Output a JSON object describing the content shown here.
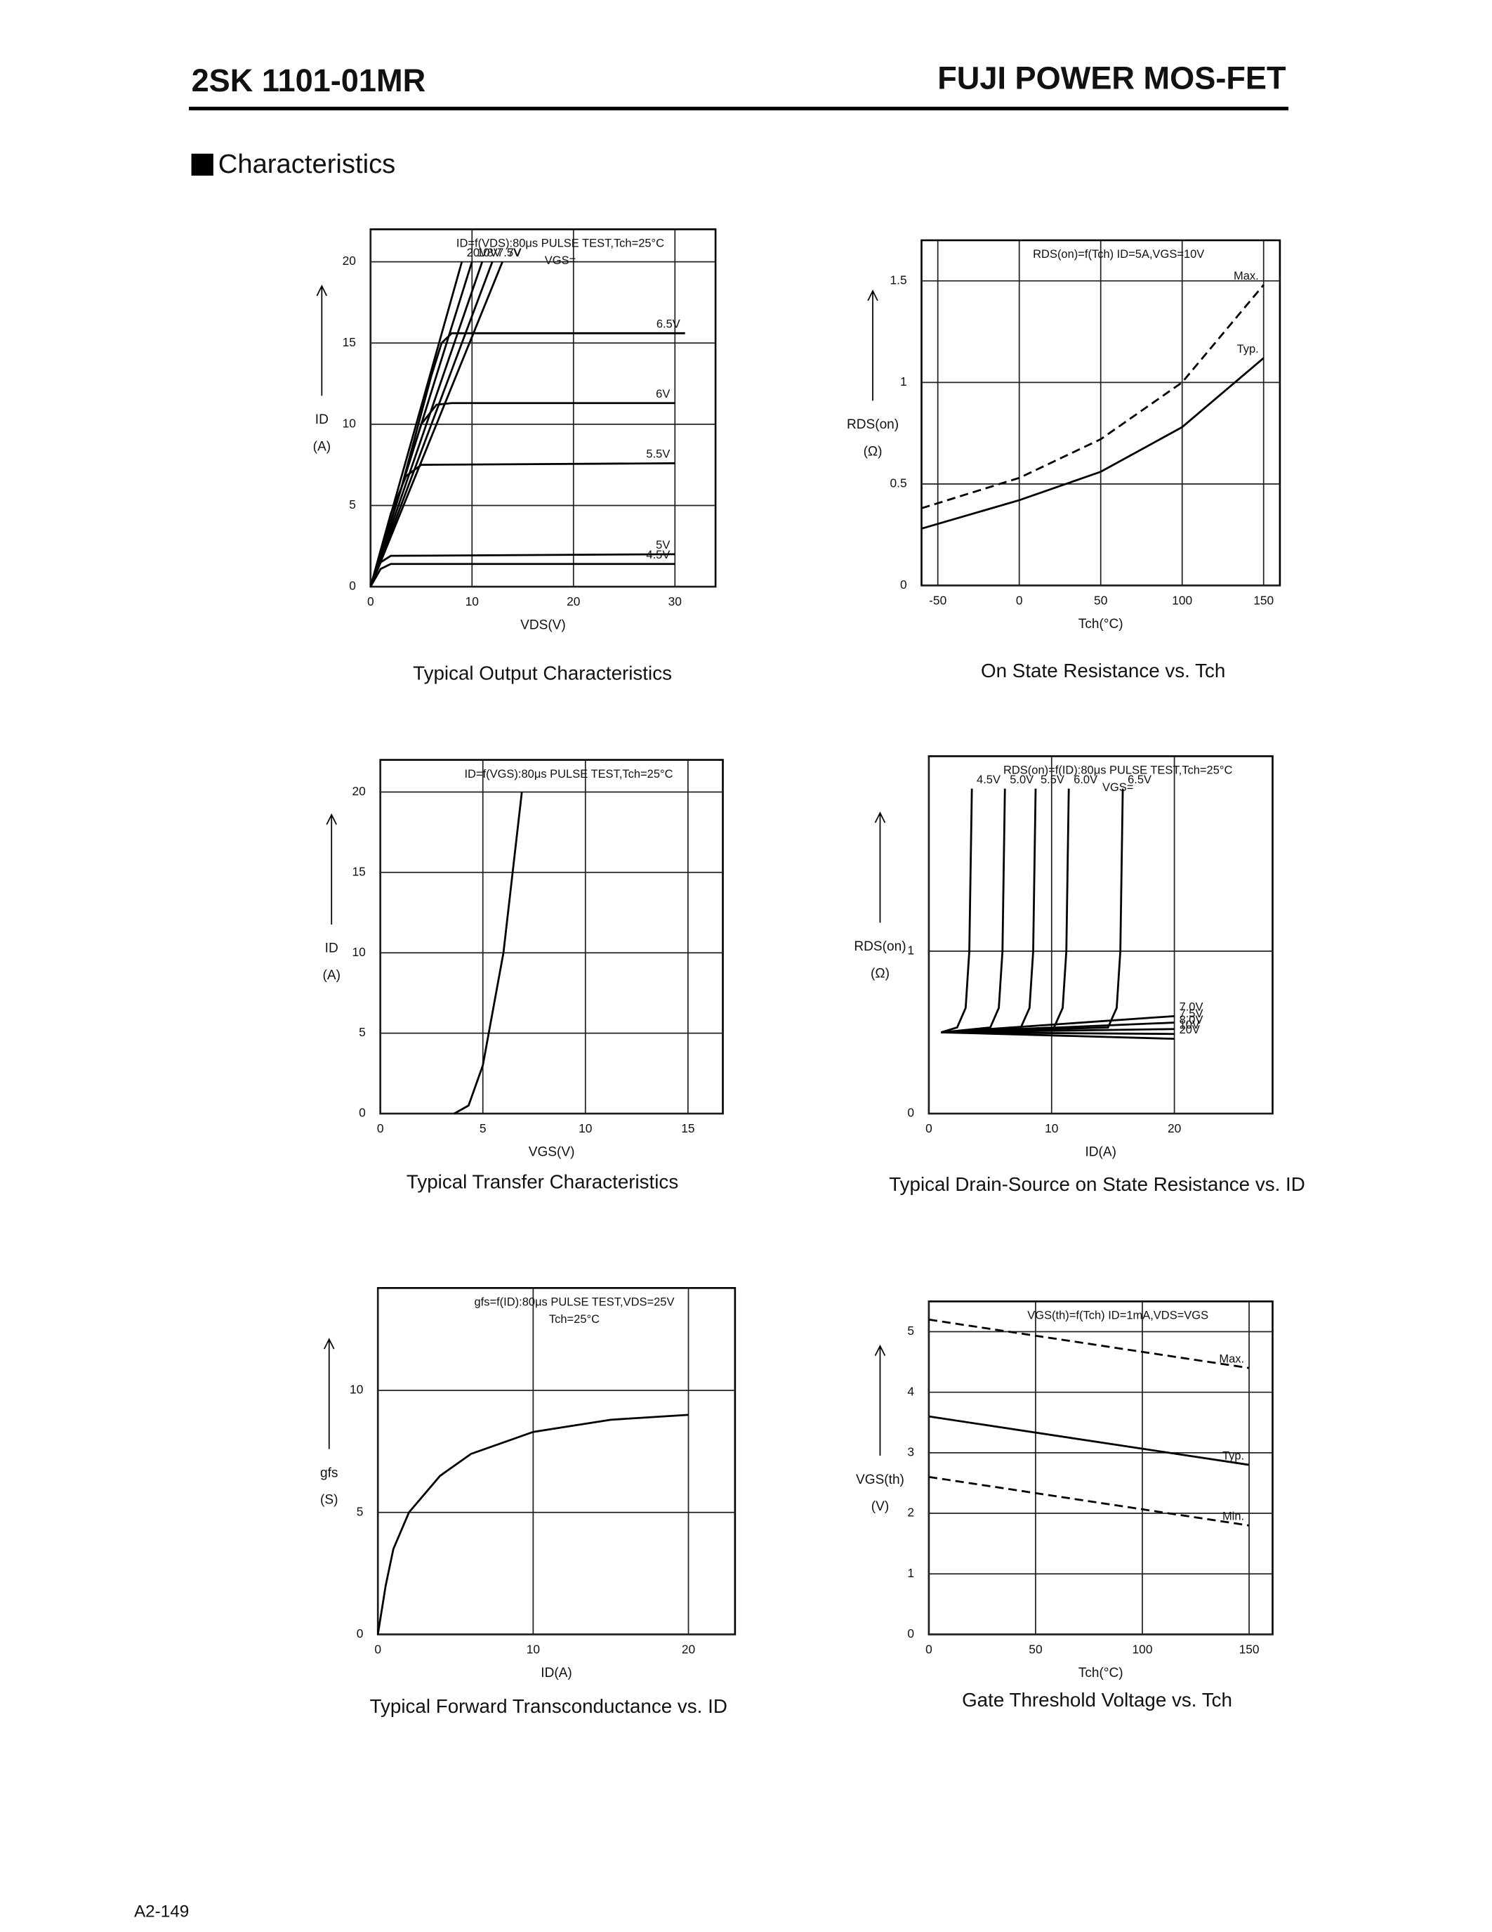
{
  "header": {
    "part": "2SK 1101-01MR",
    "family": "FUJI POWER MOS-FET"
  },
  "section": "Characteristics",
  "footer": "A2-149",
  "chart_data": [
    {
      "type": "line",
      "title": "Typical Output Characteristics",
      "xlabel": "VDS(V)",
      "ylabel": "ID",
      "yunit": "(A)",
      "annotations": [
        "ID=f(VDS):80μs PULSE TEST,Tch=25°C",
        "VGS="
      ],
      "xlim": [
        0,
        34
      ],
      "ylim": [
        0,
        22
      ],
      "xticks": [
        0,
        10,
        20,
        30
      ],
      "yticks": [
        0,
        5,
        10,
        15,
        20
      ],
      "grid": true,
      "series": [
        {
          "name": "20V",
          "color": "#000",
          "line_style": "solid",
          "x": [
            0,
            9
          ],
          "values": [
            0,
            20
          ]
        },
        {
          "name": "10V",
          "color": "#000",
          "line_style": "solid",
          "x": [
            0,
            10
          ],
          "values": [
            0,
            20
          ]
        },
        {
          "name": "8V",
          "color": "#000",
          "line_style": "solid",
          "x": [
            0,
            11
          ],
          "values": [
            0,
            20
          ]
        },
        {
          "name": "7.5V",
          "color": "#000",
          "line_style": "solid",
          "x": [
            0,
            12
          ],
          "values": [
            0,
            20
          ]
        },
        {
          "name": "7V",
          "color": "#000",
          "line_style": "solid",
          "x": [
            0,
            13
          ],
          "values": [
            0,
            20
          ]
        },
        {
          "name": "6.5V",
          "color": "#000",
          "line_style": "solid",
          "x": [
            0,
            3,
            6,
            7,
            8,
            31
          ],
          "values": [
            0,
            6,
            13,
            15,
            15.6,
            15.6
          ]
        },
        {
          "name": "6V",
          "color": "#000",
          "line_style": "solid",
          "x": [
            0,
            2,
            5,
            6.5,
            8,
            30
          ],
          "values": [
            0,
            4,
            10,
            11.2,
            11.3,
            11.3
          ]
        },
        {
          "name": "5.5V",
          "color": "#000",
          "line_style": "solid",
          "x": [
            0,
            2,
            3.5,
            5,
            30
          ],
          "values": [
            0,
            4.5,
            6.8,
            7.5,
            7.6
          ]
        },
        {
          "name": "5V",
          "color": "#000",
          "line_style": "solid",
          "x": [
            0,
            1,
            2,
            30
          ],
          "values": [
            0,
            1.5,
            1.9,
            2
          ]
        },
        {
          "name": "4.5V",
          "color": "#000",
          "line_style": "solid",
          "x": [
            0,
            1,
            2,
            30
          ],
          "values": [
            0,
            1.1,
            1.4,
            1.4
          ]
        }
      ]
    },
    {
      "type": "line",
      "title": "On State Resistance vs. Tch",
      "xlabel": "Tch(°C)",
      "ylabel": "RDS(on)",
      "yunit": "(Ω)",
      "annotations": [
        "RDS(on)=f(Tch) ID=5A,VGS=10V"
      ],
      "xlim": [
        -60,
        160
      ],
      "ylim": [
        0,
        1.7
      ],
      "xticks": [
        -50,
        0,
        50,
        100,
        150
      ],
      "yticks": [
        0,
        0.5,
        1,
        1.5
      ],
      "grid": true,
      "series": [
        {
          "name": "Max.",
          "color": "#000",
          "line_style": "dashed",
          "x": [
            -60,
            0,
            50,
            100,
            150
          ],
          "values": [
            0.38,
            0.53,
            0.72,
            1.0,
            1.48
          ]
        },
        {
          "name": "Typ.",
          "color": "#000",
          "line_style": "solid",
          "x": [
            -60,
            0,
            50,
            100,
            150
          ],
          "values": [
            0.28,
            0.42,
            0.56,
            0.78,
            1.12
          ]
        }
      ]
    },
    {
      "type": "line",
      "title": "Typical Transfer Characteristics",
      "xlabel": "VGS(V)",
      "ylabel": "ID",
      "yunit": "(A)",
      "annotations": [
        "ID=f(VGS):80μs PULSE TEST,Tch=25°C"
      ],
      "xlim": [
        0,
        16.7
      ],
      "ylim": [
        0,
        22
      ],
      "xticks": [
        0,
        5,
        10,
        15
      ],
      "yticks": [
        0,
        5,
        10,
        15,
        20
      ],
      "grid": true,
      "series": [
        {
          "name": "ID",
          "color": "#000",
          "line_style": "solid",
          "x": [
            3.6,
            4.3,
            5,
            6,
            6.9
          ],
          "values": [
            0,
            0.5,
            3,
            10,
            20
          ]
        }
      ]
    },
    {
      "type": "line",
      "title": "Typical Drain-Source on State Resistance vs. ID",
      "xlabel": "ID(A)",
      "ylabel": "RDS(on)",
      "yunit": "(Ω)",
      "annotations": [
        "RDS(on)=f(ID):80μs PULSE TEST,Tch=25°C",
        "VGS="
      ],
      "xlim": [
        0,
        28
      ],
      "ylim": [
        0,
        2.2
      ],
      "xticks": [
        0,
        10,
        20
      ],
      "yticks": [
        0,
        1
      ],
      "grid": true,
      "series": [
        {
          "name": "4.5V",
          "color": "#000",
          "line_style": "solid",
          "x": [
            1,
            2.3,
            3,
            3.3,
            3.5
          ],
          "values": [
            0.5,
            0.53,
            0.65,
            1.0,
            2.0
          ]
        },
        {
          "name": "5.0V",
          "color": "#000",
          "line_style": "solid",
          "x": [
            1,
            5,
            5.7,
            6,
            6.2
          ],
          "values": [
            0.5,
            0.53,
            0.65,
            1.0,
            2.0
          ]
        },
        {
          "name": "5.5V",
          "color": "#000",
          "line_style": "solid",
          "x": [
            1,
            7.5,
            8.2,
            8.5,
            8.7
          ],
          "values": [
            0.5,
            0.53,
            0.65,
            1.0,
            2.0
          ]
        },
        {
          "name": "6.0V",
          "color": "#000",
          "line_style": "solid",
          "x": [
            1,
            10.2,
            10.9,
            11.2,
            11.4
          ],
          "values": [
            0.5,
            0.53,
            0.65,
            1.0,
            2.0
          ]
        },
        {
          "name": "6.5V",
          "color": "#000",
          "line_style": "solid",
          "x": [
            1,
            14.6,
            15.3,
            15.6,
            15.8
          ],
          "values": [
            0.5,
            0.53,
            0.65,
            1.0,
            2.0
          ]
        },
        {
          "name": "7.0V",
          "color": "#000",
          "line_style": "solid",
          "x": [
            1,
            20
          ],
          "values": [
            0.5,
            0.6
          ]
        },
        {
          "name": "7.5V",
          "color": "#000",
          "line_style": "solid",
          "x": [
            1,
            20
          ],
          "values": [
            0.5,
            0.56
          ]
        },
        {
          "name": "8.0V",
          "color": "#000",
          "line_style": "solid",
          "x": [
            1,
            20
          ],
          "values": [
            0.5,
            0.52
          ]
        },
        {
          "name": "10V",
          "color": "#000",
          "line_style": "solid",
          "x": [
            1,
            20
          ],
          "values": [
            0.5,
            0.49
          ]
        },
        {
          "name": "20V",
          "color": "#000",
          "line_style": "solid",
          "x": [
            1,
            20
          ],
          "values": [
            0.5,
            0.46
          ]
        }
      ]
    },
    {
      "type": "line",
      "title": "Typical Forward Transconductance vs. ID",
      "xlabel": "ID(A)",
      "ylabel": "gfs",
      "yunit": "(S)",
      "annotations": [
        "gfs=f(ID):80μs PULSE TEST,VDS=25V",
        "Tch=25°C"
      ],
      "xlim": [
        0,
        23
      ],
      "ylim": [
        0,
        14.2
      ],
      "xticks": [
        0,
        10,
        20
      ],
      "yticks": [
        0,
        5,
        10
      ],
      "grid": true,
      "series": [
        {
          "name": "gfs",
          "color": "#000",
          "line_style": "solid",
          "x": [
            0,
            0.5,
            1,
            2,
            4,
            6,
            10,
            15,
            20
          ],
          "values": [
            0,
            2,
            3.5,
            5,
            6.5,
            7.4,
            8.3,
            8.8,
            9
          ]
        }
      ]
    },
    {
      "type": "line",
      "title": "Gate Threshold Voltage vs. Tch",
      "xlabel": "Tch(°C)",
      "ylabel": "VGS(th)",
      "yunit": "(V)",
      "annotations": [
        "VGS(th)=f(Tch) ID=1mA,VDS=VGS"
      ],
      "xlim": [
        0,
        161
      ],
      "ylim": [
        0,
        5.5
      ],
      "xticks": [
        0,
        50,
        100,
        150
      ],
      "yticks": [
        0,
        1,
        2,
        3,
        4,
        5
      ],
      "grid": true,
      "series": [
        {
          "name": "Max.",
          "color": "#000",
          "line_style": "dashed",
          "x": [
            0,
            150
          ],
          "values": [
            5.2,
            4.4
          ]
        },
        {
          "name": "Typ.",
          "color": "#000",
          "line_style": "solid",
          "x": [
            0,
            150
          ],
          "values": [
            3.6,
            2.8
          ]
        },
        {
          "name": "Min.",
          "color": "#000",
          "line_style": "dashed",
          "x": [
            0,
            150
          ],
          "values": [
            2.6,
            1.8
          ]
        }
      ]
    }
  ]
}
